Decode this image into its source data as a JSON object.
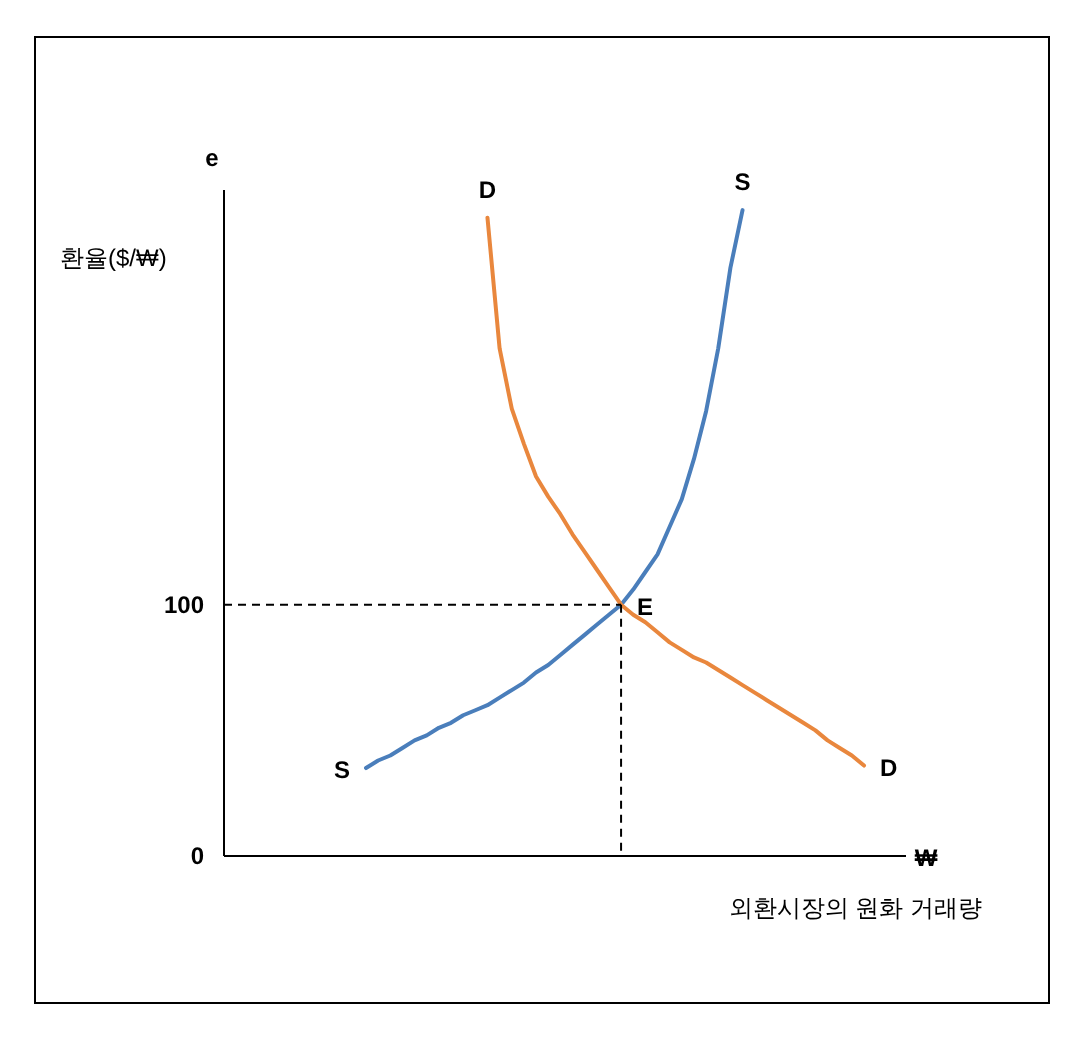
{
  "chart_data": {
    "type": "line",
    "ylabel": "e",
    "categories": [
      null,
      null,
      null,
      null,
      null,
      null,
      null,
      null,
      null,
      null,
      null,
      null,
      null,
      null,
      null,
      null,
      null,
      null,
      null,
      null,
      null,
      null,
      null,
      null,
      null,
      null,
      null,
      null,
      null,
      null,
      null,
      null,
      null,
      null,
      null,
      null,
      null,
      null,
      null,
      null,
      null,
      null
    ],
    "series": [
      {
        "name": "S",
        "color": "#4a7ebb",
        "values": [
          35,
          38,
          40,
          43,
          46,
          48,
          51,
          53,
          56,
          58,
          60,
          63,
          66,
          69,
          73,
          76,
          80,
          84,
          88,
          92,
          96,
          100,
          106,
          113,
          120,
          131,
          142,
          158,
          177,
          202,
          234,
          257,
          null,
          null,
          null,
          null,
          null,
          null,
          null,
          null,
          null,
          null
        ]
      },
      {
        "name": "D",
        "color": "#e9873d",
        "values": [
          null,
          null,
          null,
          null,
          null,
          null,
          null,
          null,
          null,
          null,
          254,
          202,
          178,
          164,
          151,
          143,
          136,
          128,
          121,
          114,
          107,
          100,
          96,
          93,
          89,
          85,
          82,
          79,
          77,
          74,
          71,
          68,
          65,
          62,
          59,
          56,
          53,
          50,
          46,
          43,
          40,
          36
        ]
      }
    ],
    "ylim": [
      0,
      265
    ],
    "yticks": [
      0,
      100
    ],
    "tick_labels": "y",
    "grid": false,
    "legend": false,
    "marker": "none",
    "line_style": "solid",
    "ref_lines": [
      {
        "axis": "y",
        "value": 100,
        "color": "#000000",
        "line_style": "dashed"
      }
    ],
    "annotations": [
      "E",
      "환율($/₩)",
      "₩",
      "외환시장의 원화 거래량"
    ]
  }
}
